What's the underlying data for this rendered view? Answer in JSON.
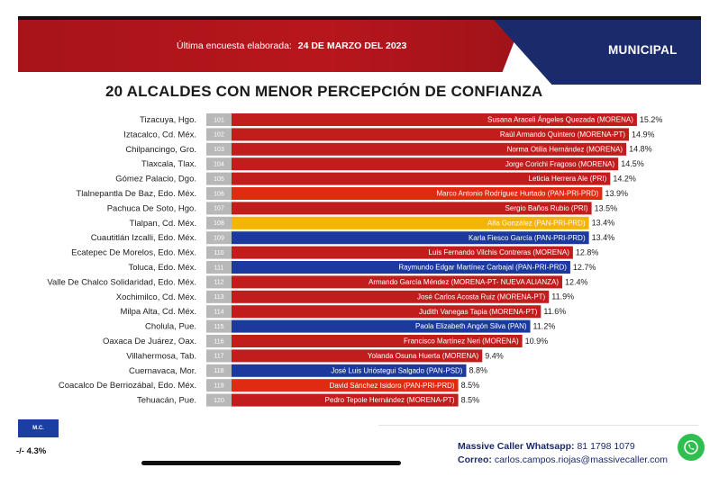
{
  "header": {
    "survey_label": "Última encuesta elaborada:",
    "survey_date": "24 DE MARZO DEL 2023",
    "section": "MUNICIPAL"
  },
  "colors": {
    "MORENA": "#c21d1d",
    "MORENA-PT": "#c21d1d",
    "PRI": "#c21d1d",
    "PAN-PRI-PRD (rojo)": "#e02a12",
    "PAN-PRI-PRD (azul)": "#1c3a9e",
    "PAN": "#1c3a9e",
    "PAN-PSD": "#1c3a9e",
    "amarillo": "#f5b400",
    "rank_cell": "#b8b8b8"
  },
  "chart_data": {
    "type": "bar",
    "title": "20 ALCALDES CON MENOR PERCEPCIÓN DE CONFIANZA",
    "xlabel": "",
    "ylabel": "",
    "value_unit": "%",
    "categories": [
      "Tizacuya, Hgo.",
      "Iztacalco, Cd. Méx.",
      "Chilpancingo, Gro.",
      "Tlaxcala, Tlax.",
      "Gómez Palacio, Dgo.",
      "Tlalnepantla De Baz, Edo. Méx.",
      "Pachuca De Soto, Hgo.",
      "Tlalpan, Cd. Méx.",
      "Cuautitlán Izcalli, Edo. Méx.",
      "Ecatepec De Morelos, Edo. Méx.",
      "Toluca, Edo. Méx.",
      "Valle De Chalco Solidaridad, Edo. Méx.",
      "Xochimilco, Cd. Méx.",
      "Milpa Alta, Cd. Méx.",
      "Cholula, Pue.",
      "Oaxaca De Juárez, Oax.",
      "Villahermosa, Tab.",
      "Cuernavaca, Mor.",
      "Coacalco De Berriozábal, Edo. Méx.",
      "Tehuacán, Pue."
    ],
    "ranks": [
      "101",
      "102",
      "103",
      "104",
      "105",
      "106",
      "107",
      "108",
      "109",
      "110",
      "111",
      "112",
      "113",
      "114",
      "115",
      "116",
      "117",
      "118",
      "119",
      "120"
    ],
    "names": [
      "Susana Araceli Ángeles Quezada (MORENA)",
      "Raúl Armando Quintero (MORENA-PT)",
      "Norma Otilia Hernández (MORENA)",
      "Jorge Corichi Fragoso (MORENA)",
      "Leticia Herrera Ale (PRI)",
      "Marco Antonio Rodríguez Hurtado (PAN-PRI-PRD)",
      "Sergio Baños Rubio (PRI)",
      "Alfa González (PAN-PRI-PRD)",
      "Karla Fiesco García (PAN-PRI-PRD)",
      "Luis Fernando Vilchis Contreras (MORENA)",
      "Raymundo Edgar Martínez Carbajal (PAN-PRI-PRD)",
      "Armando García Méndez (MORENA-PT- NUEVA ALIANZA)",
      "José Carlos Acosta Ruiz (MORENA-PT)",
      "Judith Vanegas Tapia (MORENA-PT)",
      "Paola Elizabeth Angón Silva (PAN)",
      "Francisco Martínez Neri (MORENA)",
      "Yolanda Osuna Huerta (MORENA)",
      "José Luis Urióstegui Salgado (PAN-PSD)",
      "David Sánchez Isidoro (PAN-PRI-PRD)",
      "Pedro Tepole Hernández (MORENA-PT)"
    ],
    "values": [
      15.2,
      14.9,
      14.8,
      14.5,
      14.2,
      13.9,
      13.5,
      13.4,
      13.4,
      12.8,
      12.7,
      12.4,
      11.9,
      11.6,
      11.2,
      10.9,
      9.4,
      8.8,
      8.5,
      8.5
    ],
    "value_labels": [
      "15.2%",
      "14.9%",
      "14.8%",
      "14.5%",
      "14.2%",
      "13.9%",
      "13.5%",
      "13.4%",
      "13.4%",
      "12.8%",
      "12.7%",
      "12.4%",
      "11.9%",
      "11.6%",
      "11.2%",
      "10.9%",
      "9.4%",
      "8.8%",
      "8.5%",
      "8.5%"
    ],
    "bar_colors": [
      "#c21d1d",
      "#c21d1d",
      "#c21d1d",
      "#c21d1d",
      "#c21d1d",
      "#e02a12",
      "#c21d1d",
      "#f5b400",
      "#1c3a9e",
      "#c21d1d",
      "#1c3a9e",
      "#c21d1d",
      "#c21d1d",
      "#c21d1d",
      "#1c3a9e",
      "#c21d1d",
      "#c21d1d",
      "#1c3a9e",
      "#e02a12",
      "#c21d1d"
    ],
    "grid": false,
    "legend": "none"
  },
  "sidebar_badge": {
    "label": "M.C.",
    "value": "-/- 4.3%"
  },
  "footer": {
    "whatsapp_label": "Massive Caller Whatsapp:",
    "whatsapp_number": "81 1798 1079",
    "email_label": "Correo:",
    "email": "carlos.campos.riojas@massivecaller.com"
  }
}
